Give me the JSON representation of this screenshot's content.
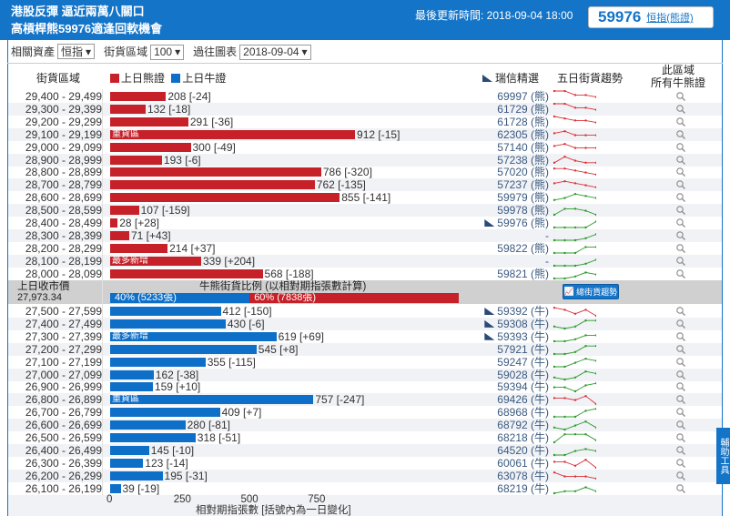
{
  "header": {
    "title_line1": "港股反彈 逼近兩萬八關口",
    "title_line2": "高槓桿熊59976適逢回軟機會",
    "update_label": "最後更新時間: 2018-09-04 18:00",
    "featured_code": "59976",
    "featured_link": "恒指(熊證)"
  },
  "controls": {
    "asset_label": "相關資產",
    "asset_value": "恒指",
    "zone_label": "街貨區域",
    "zone_value": "100",
    "history_label": "過往圖表",
    "history_value": "2018-09-04"
  },
  "columns": {
    "zone": "街貨區域",
    "legend_bear": "上日熊證",
    "legend_bull": "上日牛證",
    "ubs": "瑞信精選",
    "trend": "五日街貨趨勢",
    "all_line1": "此區域",
    "all_line2": "所有牛熊證"
  },
  "colors": {
    "bear": "#c62128",
    "bull": "#0e6fc9",
    "header": "#1474c8",
    "up": "#2e9a2e",
    "down": "#d9323a"
  },
  "bear_rows": [
    {
      "range": "29,400 - 29,499",
      "value": 208,
      "label": "208 [-24]",
      "code": "69997 (熊)",
      "ubs": false,
      "trend": {
        "dir": "down",
        "pts": [
          5,
          5,
          3,
          3,
          2
        ]
      }
    },
    {
      "range": "29,300 - 29,399",
      "value": 132,
      "label": "132 [-18]",
      "code": "61729 (熊)",
      "ubs": false,
      "trend": {
        "dir": "down",
        "pts": [
          5,
          5,
          3,
          3,
          2
        ]
      }
    },
    {
      "range": "29,200 - 29,299",
      "value": 291,
      "label": "291 [-36]",
      "code": "61728 (熊)",
      "ubs": false,
      "trend": {
        "dir": "down",
        "pts": [
          5,
          4,
          3,
          3,
          2
        ]
      }
    },
    {
      "range": "29,100 - 29,199",
      "value": 912,
      "label": "912 [-15]",
      "code": "62305 (熊)",
      "ubs": false,
      "tag": "重貨區",
      "trend": {
        "dir": "down",
        "pts": [
          3,
          4,
          2,
          2,
          2
        ]
      }
    },
    {
      "range": "29,000 - 29,099",
      "value": 300,
      "label": "300 [-49]",
      "code": "57140 (熊)",
      "ubs": false,
      "trend": {
        "dir": "down",
        "pts": [
          3,
          4,
          2,
          2,
          2
        ]
      }
    },
    {
      "range": "28,900 - 28,999",
      "value": 193,
      "label": "193 [-6]",
      "code": "57238 (熊)",
      "ubs": false,
      "trend": {
        "dir": "down",
        "pts": [
          1,
          4,
          2,
          1,
          1
        ]
      }
    },
    {
      "range": "28,800 - 28,899",
      "value": 786,
      "label": "786 [-320]",
      "code": "57020 (熊)",
      "ubs": false,
      "trend": {
        "dir": "down",
        "pts": [
          4,
          4,
          3,
          2,
          1
        ]
      }
    },
    {
      "range": "28,700 - 28,799",
      "value": 762,
      "label": "762 [-135]",
      "code": "57237 (熊)",
      "ubs": false,
      "trend": {
        "dir": "down",
        "pts": [
          3,
          4,
          3,
          2,
          1
        ]
      }
    },
    {
      "range": "28,600 - 28,699",
      "value": 855,
      "label": "855 [-141]",
      "code": "59979 (熊)",
      "ubs": false,
      "trend": {
        "dir": "up",
        "pts": [
          1,
          2,
          4,
          3,
          2
        ]
      }
    },
    {
      "range": "28,500 - 28,599",
      "value": 107,
      "label": "107 [-159]",
      "code": "59978 (熊)",
      "ubs": false,
      "trend": {
        "dir": "up",
        "pts": [
          0,
          3,
          3,
          2,
          0
        ]
      }
    },
    {
      "range": "28,400 - 28,499",
      "value": 28,
      "label": "28 [+28]",
      "code": "59976 (熊)",
      "ubs": true,
      "trend": {
        "dir": "up",
        "pts": [
          0,
          0,
          0,
          0,
          3
        ]
      }
    },
    {
      "range": "28,300 - 28,399",
      "value": 71,
      "label": "71 [+43]",
      "code": "-",
      "ubs": false,
      "trend": {
        "dir": "up",
        "pts": [
          0,
          0,
          0,
          1,
          3
        ]
      }
    },
    {
      "range": "28,200 - 28,299",
      "value": 214,
      "label": "214 [+37]",
      "code": "59822 (熊)",
      "ubs": false,
      "trend": {
        "dir": "up",
        "pts": [
          0,
          0,
          0,
          3,
          3
        ]
      }
    },
    {
      "range": "28,100 - 28,199",
      "value": 339,
      "label": "339 [+204]",
      "code": "-",
      "ubs": false,
      "tag": "最多新增",
      "trend": {
        "dir": "up",
        "pts": [
          0,
          0,
          0,
          1,
          3
        ]
      }
    },
    {
      "range": "28,000 - 28,099",
      "value": 568,
      "label": "568 [-188]",
      "code": "59821 (熊)",
      "ubs": false,
      "trend": {
        "dir": "up",
        "pts": [
          0,
          0,
          1,
          3,
          2
        ]
      }
    }
  ],
  "separator": {
    "close_label": "上日收市價",
    "close_value": "27,973.34",
    "ratio_title": "牛熊街貨比例 (以相對期指張數計算)",
    "bull_pct": 40,
    "bull_label": "40% (5233張)",
    "bear_pct": 60,
    "bear_label": "60% (7838張)",
    "trend_button": "總街貨趨勢"
  },
  "bull_rows": [
    {
      "range": "27,500 - 27,599",
      "value": 412,
      "label": "412 [-150]",
      "code": "59392 (牛)",
      "ubs": true,
      "trend": {
        "dir": "down",
        "pts": [
          4,
          3,
          1,
          3,
          0
        ]
      }
    },
    {
      "range": "27,400 - 27,499",
      "value": 430,
      "label": "430 [-6]",
      "code": "59308 (牛)",
      "ubs": true,
      "trend": {
        "dir": "up",
        "pts": [
          1,
          0,
          1,
          4,
          4
        ]
      }
    },
    {
      "range": "27,300 - 27,399",
      "value": 619,
      "label": "619 [+69]",
      "code": "59393 (牛)",
      "ubs": true,
      "tag": "最多新增",
      "trend": {
        "dir": "up",
        "pts": [
          0,
          0,
          1,
          3,
          3
        ]
      }
    },
    {
      "range": "27,200 - 27,299",
      "value": 545,
      "label": "545 [+8]",
      "code": "57921 (牛)",
      "ubs": false,
      "trend": {
        "dir": "up",
        "pts": [
          0,
          0,
          1,
          4,
          4
        ]
      }
    },
    {
      "range": "27,100 - 27,199",
      "value": 355,
      "label": "355 [-115]",
      "code": "59247 (牛)",
      "ubs": false,
      "trend": {
        "dir": "up",
        "pts": [
          0,
          0,
          2,
          4,
          3
        ]
      }
    },
    {
      "range": "27,000 - 27,099",
      "value": 162,
      "label": "162 [-38]",
      "code": "59028 (牛)",
      "ubs": false,
      "trend": {
        "dir": "up",
        "pts": [
          1,
          0,
          1,
          4,
          3
        ]
      }
    },
    {
      "range": "26,900 - 26,999",
      "value": 159,
      "label": "159 [+10]",
      "code": "59394 (牛)",
      "ubs": false,
      "trend": {
        "dir": "up",
        "pts": [
          2,
          2,
          0,
          3,
          4
        ]
      }
    },
    {
      "range": "26,800 - 26,899",
      "value": 757,
      "label": "757 [-247]",
      "code": "69426 (牛)",
      "ubs": false,
      "tag": "重貨區",
      "trend": {
        "dir": "down",
        "pts": [
          3,
          3,
          2,
          4,
          0
        ]
      }
    },
    {
      "range": "26,700 - 26,799",
      "value": 409,
      "label": "409 [+7]",
      "code": "68968 (牛)",
      "ubs": false,
      "trend": {
        "dir": "up",
        "pts": [
          0,
          0,
          0,
          3,
          4
        ]
      }
    },
    {
      "range": "26,600 - 26,699",
      "value": 280,
      "label": "280 [-81]",
      "code": "68792 (牛)",
      "ubs": false,
      "trend": {
        "dir": "up",
        "pts": [
          1,
          0,
          2,
          4,
          1
        ]
      }
    },
    {
      "range": "26,500 - 26,599",
      "value": 318,
      "label": "318 [-51]",
      "code": "68218 (牛)",
      "ubs": false,
      "trend": {
        "dir": "up",
        "pts": [
          0,
          4,
          4,
          4,
          1
        ]
      }
    },
    {
      "range": "26,400 - 26,499",
      "value": 145,
      "label": "145 [-10]",
      "code": "64520 (牛)",
      "ubs": false,
      "trend": {
        "dir": "up",
        "pts": [
          0,
          0,
          2,
          3,
          2
        ]
      }
    },
    {
      "range": "26,300 - 26,399",
      "value": 123,
      "label": "123 [-14]",
      "code": "60061 (牛)",
      "ubs": false,
      "trend": {
        "dir": "down",
        "pts": [
          3,
          3,
          1,
          4,
          0
        ]
      }
    },
    {
      "range": "26,200 - 26,299",
      "value": 195,
      "label": "195 [-31]",
      "code": "63078 (牛)",
      "ubs": false,
      "trend": {
        "dir": "down",
        "pts": [
          4,
          2,
          2,
          2,
          1
        ]
      }
    },
    {
      "range": "26,100 - 26,199",
      "value": 39,
      "label": "39 [-19]",
      "code": "68219 (牛)",
      "ubs": false,
      "trend": {
        "dir": "up",
        "pts": [
          0,
          1,
          1,
          3,
          1
        ]
      }
    }
  ],
  "axis": {
    "ticks": [
      0,
      250,
      500,
      750
    ],
    "tick_labels": [
      "0",
      "250",
      "500",
      "750"
    ],
    "title": "相對期指張數 [括號內為一日變化]"
  },
  "side_tab": "輔助工具"
}
